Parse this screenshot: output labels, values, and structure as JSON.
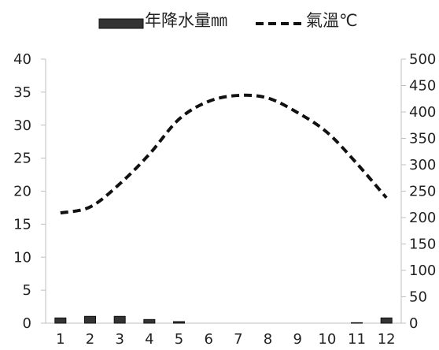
{
  "chart_data": {
    "type": "bar+line",
    "categories": [
      "1",
      "2",
      "3",
      "4",
      "5",
      "6",
      "7",
      "8",
      "9",
      "10",
      "11",
      "12"
    ],
    "series": [
      {
        "name": "年降水量㎜",
        "kind": "bar",
        "axis": "right",
        "values": [
          10,
          13,
          13,
          7,
          3,
          0,
          0,
          0,
          0,
          0,
          1,
          10
        ],
        "color": "#333333"
      },
      {
        "name": "氣溫℃",
        "kind": "line",
        "axis": "left",
        "line_style": "dashed",
        "values": [
          16.7,
          17.6,
          21.1,
          25.6,
          30.9,
          33.6,
          34.5,
          34.1,
          31.9,
          28.9,
          24.2,
          19.0
        ],
        "color": "#111111"
      }
    ],
    "left_axis": {
      "ylim": [
        0,
        40
      ],
      "ticks": [
        0,
        5,
        10,
        15,
        20,
        25,
        30,
        35,
        40
      ]
    },
    "right_axis": {
      "ylim": [
        0,
        500
      ],
      "ticks": [
        0,
        50,
        100,
        150,
        200,
        250,
        300,
        350,
        400,
        450,
        500
      ]
    },
    "legend": {
      "placement": "top-center",
      "entries": [
        "年降水量㎜",
        "氣溫℃"
      ]
    },
    "grid": false,
    "title": "",
    "xlabel": "",
    "ylabel": ""
  }
}
